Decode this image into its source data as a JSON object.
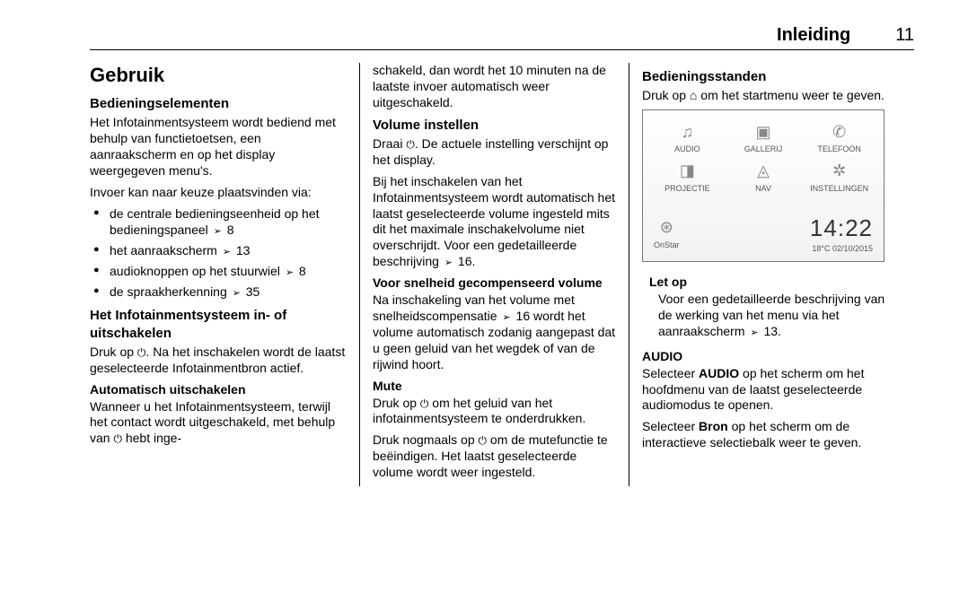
{
  "header": {
    "title": "Inleiding",
    "pageno": "11"
  },
  "col1": {
    "h1": "Gebruik",
    "h2a": "Bedieningselementen",
    "p1": "Het Infotainmentsysteem wordt bediend met behulp van functietoetsen, een aanraakscherm en op het display weergegeven menu's.",
    "p2": "Invoer kan naar keuze plaatsvinden via:",
    "li1a": "de centrale bedieningseenheid op het bedieningspaneel ",
    "li1b": " 8",
    "li2a": "het aanraakscherm ",
    "li2b": " 13",
    "li3a": "audioknoppen op het stuurwiel ",
    "li3b": " 8",
    "li4a": "de spraakherkenning ",
    "li4b": " 35",
    "h2b": "Het Infotainmentsysteem in- of uitschakelen",
    "p3a": "Druk op ",
    "p3b": ". Na het inschakelen wordt de laatst geselecteerde Infotainmentbron actief.",
    "h3a": "Automatisch uitschakelen",
    "p4a": "Wanneer u het Infotainmentsysteem, terwijl het contact wordt uitgeschakeld, met behulp van ",
    "p4b": " hebt inge-"
  },
  "col2": {
    "p1": "schakeld, dan wordt het 10 minuten na de laatste invoer automatisch weer uitgeschakeld.",
    "h2a": "Volume instellen",
    "p2a": "Draai ",
    "p2b": ". De actuele instelling verschijnt op het display.",
    "p3a": "Bij het inschakelen van het Infotainmentsysteem wordt automatisch het laatst geselecteerde volume ingesteld mits dit het maximale inschakelvolume niet overschrijdt. Voor een gedetailleerde beschrijving ",
    "p3b": " 16.",
    "h3a": "Voor snelheid gecompenseerd volume",
    "p4a": "Na inschakeling van het volume met snelheidscompensatie ",
    "p4b": " 16 wordt het volume automatisch zodanig aangepast dat u geen geluid van het wegdek of van de rijwind hoort.",
    "h3b": "Mute",
    "p5a": "Druk op ",
    "p5b": " om het geluid van het infotainmentsysteem te onderdrukken.",
    "p6a": "Druk nogmaals op ",
    "p6b": " om de mutefunctie te beëindigen. Het laatst geselecteerde volume wordt weer ingesteld."
  },
  "col3": {
    "h2a": "Bedieningsstanden",
    "p1a": "Druk op ",
    "p1b": " om het startmenu weer te geven.",
    "shot": {
      "items": [
        {
          "icon": "♫",
          "label": "AUDIO"
        },
        {
          "icon": "▣",
          "label": "GALLERIJ"
        },
        {
          "icon": "✆",
          "label": "TELEFOON"
        },
        {
          "icon": "◨",
          "label": "PROJECTIE"
        },
        {
          "icon": "◬",
          "label": "NAV"
        },
        {
          "icon": "✲",
          "label": "INSTELLINGEN"
        }
      ],
      "onstar": {
        "icon": "⊛",
        "label": "OnStar"
      },
      "time": "14:22",
      "date_temp": "18°C   02/10/2015"
    },
    "note_title": "Let op",
    "note_body_a": "Voor een gedetailleerde beschrijving van de werking van het menu via het aanraakscherm ",
    "note_body_b": " 13.",
    "h3a": "AUDIO",
    "p2a": "Selecteer ",
    "p2bold": "AUDIO",
    "p2b": " op het scherm om het hoofdmenu van de laatst geselecteerde audiomodus te openen.",
    "p3a": "Selecteer ",
    "p3bold": "Bron",
    "p3b": " op het scherm om de interactieve selectiebalk weer te geven."
  }
}
